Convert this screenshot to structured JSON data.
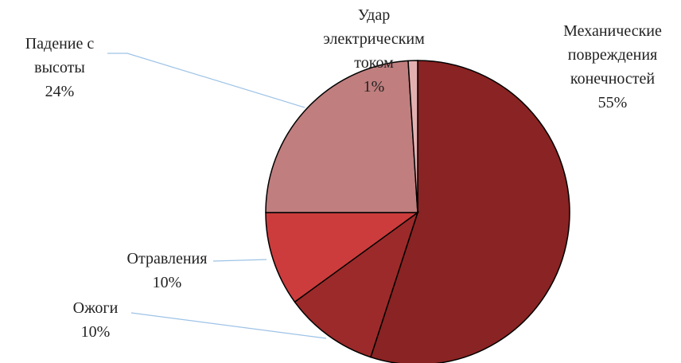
{
  "chart_data": {
    "type": "pie",
    "categories": [
      "Механические повреждения конечностей",
      "Ожоги",
      "Отравления",
      "Падение с высоты",
      "Удар электрическим током"
    ],
    "values": [
      55,
      10,
      10,
      24,
      1
    ],
    "value_labels": [
      "55%",
      "10%",
      "10%",
      "24%",
      "1%"
    ],
    "colors": [
      "#8a2323",
      "#9c2a2a",
      "#cc3c3c",
      "#c07e7e",
      "#e3b0b0"
    ]
  }
}
